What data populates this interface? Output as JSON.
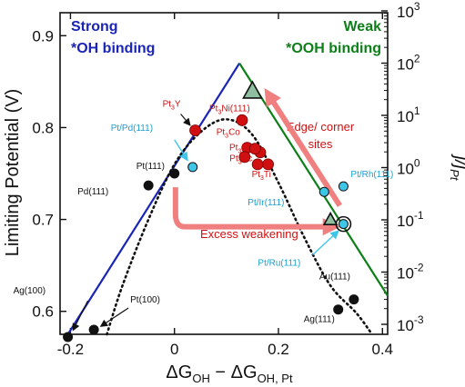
{
  "chart_data": {
    "type": "scatter",
    "xlabel": "ΔG_OH − ΔG_OH,Pt",
    "ylabel": "Limiting Potential (V)",
    "y2label": "j/j_Pt",
    "xlim": [
      -0.22,
      0.41
    ],
    "ylim": [
      0.575,
      0.925
    ],
    "y2_scale": "log",
    "x_ticks": [
      "-0.2",
      "0",
      "0.2",
      "0.4"
    ],
    "y_ticks": [
      "0.6",
      "0.7",
      "0.8",
      "0.9"
    ],
    "y2_ticks": [
      {
        "base": "10",
        "exp": "-3"
      },
      {
        "base": "10",
        "exp": "-2"
      },
      {
        "base": "10",
        "exp": "-1"
      },
      {
        "base": "10",
        "exp": "0"
      },
      {
        "base": "10",
        "exp": "1"
      },
      {
        "base": "10",
        "exp": "2"
      },
      {
        "base": "10",
        "exp": "3"
      }
    ],
    "volcano": {
      "apex": [
        0.125,
        0.87
      ],
      "strong_line_bottom": [
        -0.205,
        0.575
      ],
      "weak_line_bottom": [
        0.41,
        0.617
      ],
      "strong_color": "#1a25b8",
      "weak_color": "#0d7f19",
      "dotted_curve": [
        [
          -0.13,
          0.575
        ],
        [
          -0.1,
          0.628
        ],
        [
          -0.05,
          0.7
        ],
        [
          0.0,
          0.76
        ],
        [
          0.05,
          0.795
        ],
        [
          0.1,
          0.809
        ],
        [
          0.15,
          0.792
        ],
        [
          0.2,
          0.74
        ],
        [
          0.25,
          0.68
        ],
        [
          0.3,
          0.628
        ],
        [
          0.35,
          0.598
        ],
        [
          0.38,
          0.575
        ]
      ]
    },
    "annotations": {
      "strong": [
        "Strong",
        "*OH binding"
      ],
      "weak": [
        "Weak",
        "*OOH binding"
      ],
      "edge": [
        "Edge/ corner",
        "sites"
      ],
      "excess": "Excess weakening"
    },
    "points_black": [
      {
        "label": "Pt(111)",
        "x": 0.0,
        "y": 0.75
      },
      {
        "label": "Pd(111)",
        "x": -0.05,
        "y": 0.737
      },
      {
        "label": "Ag(100)",
        "x": -0.205,
        "y": 0.572
      },
      {
        "label": "Pt(100)",
        "x": -0.155,
        "y": 0.58
      },
      {
        "label": "Au(111)",
        "x": 0.345,
        "y": 0.613
      },
      {
        "label": "Ag(111)",
        "x": 0.315,
        "y": 0.602
      }
    ],
    "points_red": [
      {
        "label": "Pt",
        "sub": "3",
        "suf": "Y",
        "x": 0.04,
        "y": 0.797
      },
      {
        "label": "Pt",
        "sub": "3",
        "suf": "Ni(111)",
        "x": 0.13,
        "y": 0.808
      },
      {
        "label": "Pt",
        "sub": "3",
        "suf": "Co",
        "x": 0.14,
        "y": 0.778
      },
      {
        "label": "Pt",
        "sub": "3",
        "suf": "Ni",
        "x": 0.165,
        "y": 0.773
      },
      {
        "label": "Pt",
        "sub": "3",
        "suf": "Sc",
        "x": 0.155,
        "y": 0.777
      },
      {
        "label": "Pt",
        "sub": "3",
        "suf": "Ti",
        "x": 0.18,
        "y": 0.76
      },
      {
        "label": "",
        "x": 0.135,
        "y": 0.768
      },
      {
        "label": "",
        "x": 0.16,
        "y": 0.76
      }
    ],
    "points_cyan": [
      {
        "label": "Pt/Pd(111)",
        "x": 0.035,
        "y": 0.757
      },
      {
        "label": "Pt/Rh(111)",
        "x": 0.325,
        "y": 0.736
      },
      {
        "label": "Pt/Ir(111)",
        "x": 0.288,
        "y": 0.73
      },
      {
        "label": "Pt/Ru(111)",
        "x": 0.325,
        "y": 0.695
      }
    ],
    "points_triangle": [
      {
        "x": 0.15,
        "y": 0.84
      },
      {
        "x": 0.3,
        "y": 0.7
      }
    ],
    "colors": {
      "red_point": "#d01010",
      "cyan_point": "#3ec6e8",
      "cyan_label": "#1aa0d0",
      "red_label": "#d01010",
      "arrow": "#f08080",
      "black_point": "#111111"
    }
  }
}
